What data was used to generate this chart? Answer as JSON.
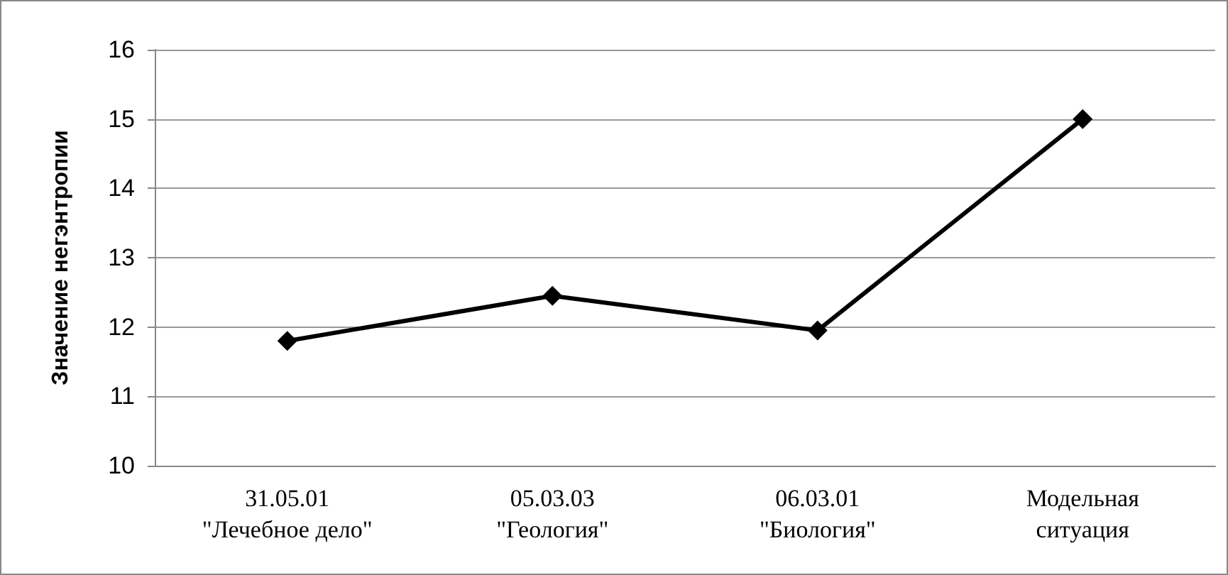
{
  "chart_data": {
    "type": "line",
    "ylabel": "Значение негэнтропии",
    "categories": [
      "31.05.01\n\"Лечебное дело\"",
      "05.03.03\n\"Геология\"",
      "06.03.01\n\"Биология\"",
      "Модельная\nситуация"
    ],
    "series": [
      {
        "color": "#000000",
        "values": [
          11.8,
          12.45,
          11.95,
          15
        ]
      }
    ],
    "ylim": [
      10,
      16
    ],
    "yticks": [
      10,
      11,
      12,
      13,
      14,
      15,
      16
    ],
    "grid": "y",
    "marker": "diamond",
    "line_style": "solid"
  }
}
